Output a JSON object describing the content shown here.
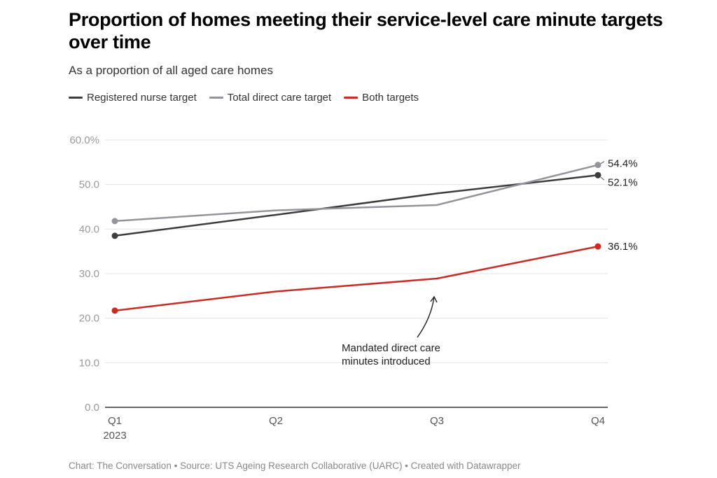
{
  "chart_data": {
    "type": "line",
    "title": "Proportion of homes meeting their service-level care minute targets over time",
    "subtitle": "As a proportion of all aged care homes",
    "xlabel": "",
    "ylabel": "",
    "categories": [
      "Q1",
      "Q2",
      "Q3",
      "Q4"
    ],
    "category_sublabels": [
      "2023",
      "",
      "",
      ""
    ],
    "ylim": [
      0,
      60
    ],
    "yticks": [
      0,
      10,
      20,
      30,
      40,
      50,
      60
    ],
    "ytick_labels": [
      "0.0",
      "10.0",
      "20.0",
      "30.0",
      "40.0",
      "50.0",
      "60.0%"
    ],
    "grid": true,
    "legend_position": "top-left",
    "series": [
      {
        "name": "Registered nurse target",
        "color": "#3d3d3d",
        "values": [
          38.5,
          43.2,
          48.0,
          52.1
        ],
        "end_label": "52.1%"
      },
      {
        "name": "Total direct care target",
        "color": "#94949c",
        "values": [
          41.8,
          44.2,
          45.4,
          54.4
        ],
        "end_label": "54.4%"
      },
      {
        "name": "Both targets",
        "color": "#cc2b24",
        "values": [
          21.7,
          26.0,
          28.9,
          36.1
        ],
        "end_label": "36.1%"
      }
    ],
    "annotations": [
      {
        "text_lines": [
          "Mandated direct care",
          "minutes introduced"
        ],
        "points_to": {
          "category": "Q3",
          "value": 28.9
        }
      }
    ]
  },
  "footer": "Chart: The Conversation • Source: UTS Ageing Research Collaborative (UARC) • Created with Datawrapper"
}
